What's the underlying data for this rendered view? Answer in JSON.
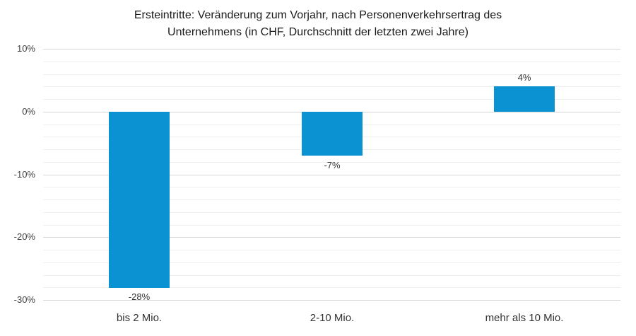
{
  "chart_data": {
    "type": "bar",
    "title": "Ersteintritte: Veränderung zum Vorjahr, nach Personenverkehrsertrag des Unternehmens (in CHF, Durchschnitt der letzten zwei Jahre)",
    "title_lines": [
      "Ersteintritte: Veränderung zum Vorjahr, nach Personenverkehrsertrag des",
      "Unternehmens (in CHF, Durchschnitt der letzten zwei Jahre)"
    ],
    "categories": [
      "bis 2 Mio.",
      "2-10 Mio.",
      "mehr als 10 Mio."
    ],
    "values": [
      -28,
      -7,
      4
    ],
    "value_labels": [
      "-28%",
      "-7%",
      "4%"
    ],
    "xlabel": "",
    "ylabel": "",
    "ylim": [
      -30,
      10
    ],
    "y_major_step": 10,
    "y_minor_step": 2,
    "y_ticks": [
      {
        "label": "10%",
        "value": 10
      },
      {
        "label": "0%",
        "value": 0
      },
      {
        "label": "-10%",
        "value": -10
      },
      {
        "label": "-20%",
        "value": -20
      },
      {
        "label": "-30%",
        "value": -30
      }
    ],
    "grid": "horizontal major and minor gridlines, no vertical gridlines",
    "legend": "none",
    "colors": {
      "bar": "#0b92d2",
      "major_gridline": "#d6d6d6",
      "minor_gridline": "#efefef",
      "title_text": "#1a1a1a",
      "axis_text": "#3f3f3f",
      "label_text": "#333333",
      "background": "#ffffff"
    }
  }
}
